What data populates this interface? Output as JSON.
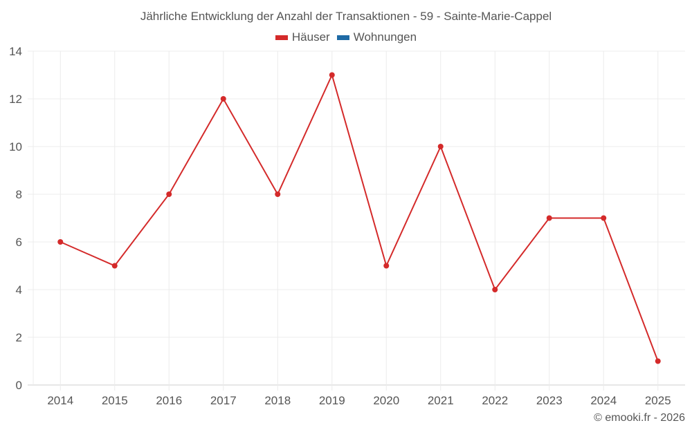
{
  "chart_data": {
    "type": "line",
    "title": "Jährliche Entwicklung der Anzahl der Transaktionen - 59 - Sainte-Marie-Cappel",
    "xlabel": "",
    "ylabel": "",
    "categories": [
      "2014",
      "2015",
      "2016",
      "2017",
      "2018",
      "2019",
      "2020",
      "2021",
      "2022",
      "2023",
      "2024",
      "2025"
    ],
    "series": [
      {
        "name": "Häuser",
        "color": "#d42a2a",
        "values": [
          6,
          5,
          8,
          12,
          8,
          13,
          5,
          10,
          4,
          7,
          7,
          1
        ]
      },
      {
        "name": "Wohnungen",
        "color": "#1f6aa5",
        "values": []
      }
    ],
    "ylim": [
      0,
      14
    ],
    "yticks": [
      0,
      2,
      4,
      6,
      8,
      10,
      12,
      14
    ],
    "grid": true,
    "legend_position": "top"
  },
  "legend": {
    "items": [
      {
        "label": "Häuser",
        "color": "#d42a2a"
      },
      {
        "label": "Wohnungen",
        "color": "#1f6aa5"
      }
    ]
  },
  "credit": "© emooki.fr - 2026"
}
